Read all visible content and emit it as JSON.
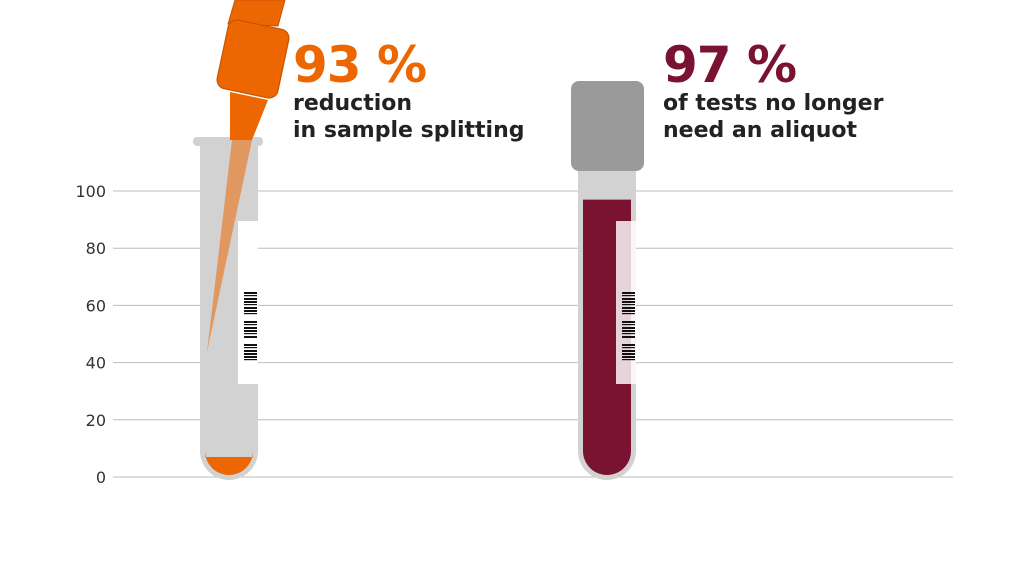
{
  "chart_data": {
    "type": "bar",
    "categories": [
      "reduction in sample splitting",
      "of tests no longer need an aliquot"
    ],
    "values": [
      93,
      97
    ],
    "ylim": [
      0,
      100
    ],
    "yticks": [
      0,
      20,
      40,
      60,
      80,
      100
    ],
    "grid": true,
    "series": [
      {
        "values": [
          93,
          97
        ]
      }
    ],
    "annotations": [
      {
        "value_label": "93 %",
        "caption_lines": [
          "reduction",
          "in sample splitting"
        ],
        "color": "#ec6602",
        "liquid_level": 7,
        "style": "pipette"
      },
      {
        "value_label": "97 %",
        "caption_lines": [
          "of tests no longer",
          "need an aliquot"
        ],
        "color": "#7a1232",
        "liquid_level": 97,
        "style": "capped-blood-tube"
      }
    ]
  },
  "colors": {
    "accent_orange": "#ec6602",
    "accent_red": "#7a1232",
    "tube_gray": "#d2d2d2",
    "cap_gray": "#9a9a9a",
    "grid": "#bdbdbd",
    "text": "#222222"
  },
  "icons": [
    "pipette-icon",
    "test-tube-icon",
    "blood-tube-icon",
    "barcode-label-icon"
  ]
}
